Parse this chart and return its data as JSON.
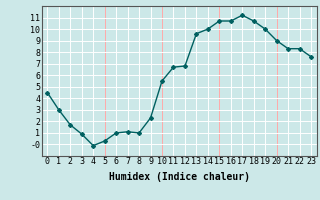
{
  "x": [
    0,
    1,
    2,
    3,
    4,
    5,
    6,
    7,
    8,
    9,
    10,
    11,
    12,
    13,
    14,
    15,
    16,
    17,
    18,
    19,
    20,
    21,
    22,
    23
  ],
  "y": [
    4.5,
    3.0,
    1.7,
    0.9,
    -0.1,
    0.3,
    1.0,
    1.1,
    1.0,
    2.3,
    5.5,
    6.7,
    6.8,
    9.6,
    10.0,
    10.7,
    10.7,
    11.2,
    10.7,
    10.0,
    9.0,
    8.3,
    8.3,
    7.6
  ],
  "line_color": "#006060",
  "marker": "D",
  "marker_size": 2,
  "bg_color": "#cce8e8",
  "grid_color_white": "#ffffff",
  "grid_color_red": "#ffaaaa",
  "xlabel": "Humidex (Indice chaleur)",
  "xlim": [
    -0.5,
    23.5
  ],
  "ylim": [
    -1,
    12
  ],
  "yticks": [
    0,
    1,
    2,
    3,
    4,
    5,
    6,
    7,
    8,
    9,
    10,
    11
  ],
  "ytick_labels": [
    "-0",
    "1",
    "2",
    "3",
    "4",
    "5",
    "6",
    "7",
    "8",
    "9",
    "10",
    "11"
  ],
  "xticks": [
    0,
    1,
    2,
    3,
    4,
    5,
    6,
    7,
    8,
    9,
    10,
    11,
    12,
    13,
    14,
    15,
    16,
    17,
    18,
    19,
    20,
    21,
    22,
    23
  ],
  "red_vlines": [
    5,
    10,
    15,
    20
  ],
  "xlabel_fontsize": 7,
  "tick_fontsize": 6,
  "line_width": 1.0
}
